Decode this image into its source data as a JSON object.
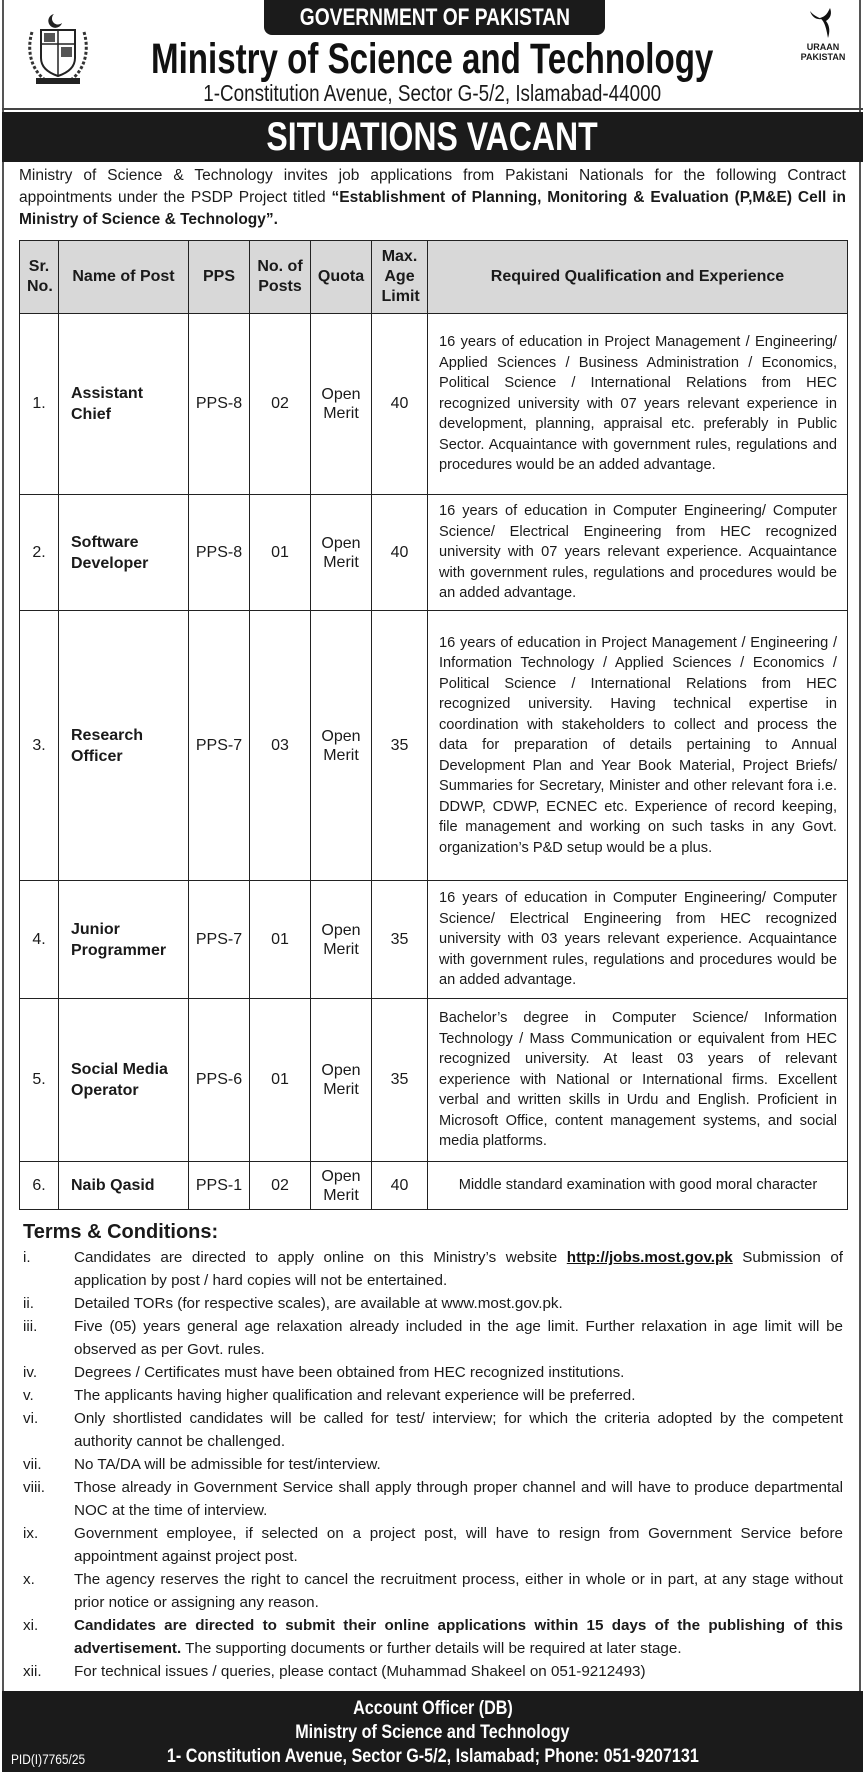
{
  "header": {
    "government": "GOVERNMENT OF PAKISTAN",
    "ministry": "Ministry of Science and Technology",
    "address": "1-Constitution Avenue, Sector G-5/2, Islamabad-44000",
    "right_logo_text": "URAAN PAKISTAN"
  },
  "banner": "SITUATIONS VACANT",
  "intro": {
    "text": "Ministry of Science & Technology invites job applications from Pakistani Nationals for the following Contract appointments under the PSDP Project titled ",
    "bold": "“Establishment of Planning, Monitoring & Evaluation (P,M&E) Cell in Ministry of Science & Technology”",
    "end": "."
  },
  "table": {
    "headers": [
      "Sr. No.",
      "Name of Post",
      "PPS",
      "No. of Posts",
      "Quota",
      "Max. Age Limit",
      "Required Qualification and Experience"
    ],
    "rows": [
      {
        "sr": "1.",
        "post": "Assistant Chief",
        "pps": "PPS-8",
        "posts": "02",
        "quota": "Open Merit",
        "age": "40",
        "qualification": "16 years of education in Project Management / Engineering/ Applied Sciences / Business Administration / Economics, Political Science / International Relations from HEC recognized university with 07 years relevant experience in development, planning, appraisal etc. preferably in Public Sector. Acquaintance with government rules, regulations and procedures would be an added advantage."
      },
      {
        "sr": "2.",
        "post": "Software Developer",
        "pps": "PPS-8",
        "posts": "01",
        "quota": "Open Merit",
        "age": "40",
        "qualification": "16 years of education in Computer Engineering/ Computer Science/ Electrical Engineering from HEC recognized university with 07 years relevant experience. Acquaintance with government rules, regulations and procedures would be an added advantage."
      },
      {
        "sr": "3.",
        "post": "Research Officer",
        "pps": "PPS-7",
        "posts": "03",
        "quota": "Open Merit",
        "age": "35",
        "qualification": "16 years of education in Project Management / Engineering / Information Technology / Applied Sciences / Economics / Political Science / International Relations from HEC recognized university. Having technical expertise in coordination with stakeholders to collect and process the data for preparation of details pertaining to Annual Development Plan and Year Book Material, Project Briefs/ Summaries for Secretary, Minister and other relevant fora i.e. DDWP, CDWP, ECNEC etc. Experience of record keeping, file management and working on such tasks in any Govt. organization’s P&D setup would be a plus."
      },
      {
        "sr": "4.",
        "post": "Junior Programmer",
        "pps": "PPS-7",
        "posts": "01",
        "quota": "Open Merit",
        "age": "35",
        "qualification": "16 years of education in Computer Engineering/ Computer Science/ Electrical Engineering from HEC recognized university with 03 years relevant experience. Acquaintance with government rules, regulations and procedures would be an added advantage."
      },
      {
        "sr": "5.",
        "post": "Social Media Operator",
        "pps": "PPS-6",
        "posts": "01",
        "quota": "Open Merit",
        "age": "35",
        "qualification": "Bachelor’s degree in Computer Science/ Information Technology / Mass Communication or equivalent from HEC recognized university. At least 03 years of relevant experience with National or International firms. Excellent verbal and written skills in Urdu and English. Proficient in Microsoft Office, content management systems, and social media platforms."
      },
      {
        "sr": "6.",
        "post": "Naib Qasid",
        "pps": "PPS-1",
        "posts": "02",
        "quota": "Open Merit",
        "age": "40",
        "qualification": "Middle standard examination with good moral character"
      }
    ]
  },
  "terms": {
    "heading": "Terms & Conditions:",
    "items": [
      {
        "num": "i.",
        "text": "Candidates are directed to apply online on this Ministry’s website ",
        "link": "http://jobs.most.gov.pk",
        "after": " Submission of application by post / hard copies will not be entertained."
      },
      {
        "num": "ii.",
        "text": "Detailed TORs (for respective scales), are available at www.most.gov.pk."
      },
      {
        "num": "iii.",
        "text": "Five (05) years general age relaxation already included in the age limit. Further relaxation in age limit will be observed as per Govt. rules."
      },
      {
        "num": "iv.",
        "text": "Degrees / Certificates must have been obtained from HEC recognized institutions."
      },
      {
        "num": "v.",
        "text": "The applicants having higher qualification and relevant experience will be preferred."
      },
      {
        "num": "vi.",
        "text": "Only shortlisted candidates will be called for test/ interview; for which the criteria adopted by the competent authority cannot be challenged."
      },
      {
        "num": "vii.",
        "text": "No TA/DA will be admissible for test/interview."
      },
      {
        "num": "viii.",
        "text": "Those already in Government Service shall apply through proper channel and will have to produce departmental NOC at the time of interview."
      },
      {
        "num": "ix.",
        "text": "Government employee, if selected on a project post, will have to resign from Government Service before appointment against project post."
      },
      {
        "num": "x.",
        "text": "The agency reserves the right to cancel the recruitment process, either in whole or in part, at any stage without prior notice or assigning any reason."
      },
      {
        "num": "xi.",
        "bold": "Candidates are directed to submit their online applications within 15 days of the publishing of this advertisement.",
        "text": " The supporting documents or further details will be required at later stage."
      },
      {
        "num": "xii.",
        "text": "For technical issues / queries, please contact (Muhammad Shakeel on 051-9212493)"
      }
    ]
  },
  "footer": {
    "line1": "Account Officer (DB)",
    "line2": "Ministry of Science and Technology",
    "line3": "1- Constitution Avenue, Sector G-5/2, Islamabad; Phone: 051-9207131",
    "pid": "PID(I)7765/25"
  }
}
